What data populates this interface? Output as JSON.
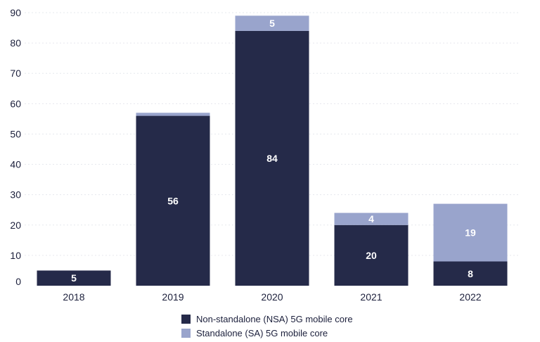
{
  "chart_data": {
    "type": "bar",
    "stacked": true,
    "categories": [
      "2018",
      "2019",
      "2020",
      "2021",
      "2022"
    ],
    "series": [
      {
        "name": "Non-standalone (NSA) 5G mobile core",
        "values": [
          5,
          56,
          84,
          20,
          8
        ],
        "color": "#252a49"
      },
      {
        "name": "Standalone (SA) 5G mobile core",
        "values": [
          0,
          1,
          5,
          4,
          19
        ],
        "color": "#99a4cc"
      }
    ],
    "data_labels": [
      [
        "5",
        "56",
        "84",
        "20",
        "8"
      ],
      [
        "",
        "",
        "5",
        "4",
        "19"
      ]
    ],
    "ylim": [
      0,
      90
    ],
    "yticks": [
      "0",
      "10",
      "20",
      "30",
      "40",
      "50",
      "60",
      "70",
      "80",
      "90"
    ],
    "xlabel": "",
    "ylabel": "",
    "grid": true,
    "legend_position": "bottom"
  }
}
